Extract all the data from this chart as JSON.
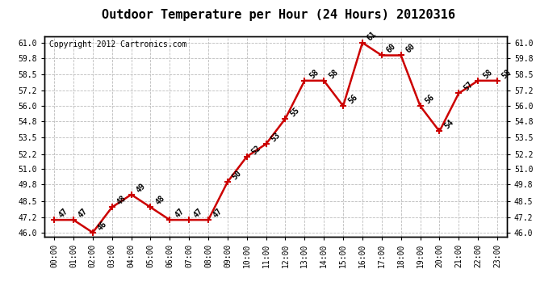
{
  "title": "Outdoor Temperature per Hour (24 Hours) 20120316",
  "copyright": "Copyright 2012 Cartronics.com",
  "hours": [
    "00:00",
    "01:00",
    "02:00",
    "03:00",
    "04:00",
    "05:00",
    "06:00",
    "07:00",
    "08:00",
    "09:00",
    "10:00",
    "11:00",
    "12:00",
    "13:00",
    "14:00",
    "15:00",
    "16:00",
    "17:00",
    "18:00",
    "19:00",
    "20:00",
    "21:00",
    "22:00",
    "23:00"
  ],
  "temperatures": [
    47,
    47,
    46,
    48,
    49,
    48,
    47,
    47,
    47,
    50,
    52,
    53,
    55,
    58,
    58,
    56,
    61,
    60,
    60,
    56,
    54,
    57,
    58,
    58
  ],
  "ylim": [
    45.7,
    61.5
  ],
  "yticks": [
    46.0,
    47.2,
    48.5,
    49.8,
    51.0,
    52.2,
    53.5,
    54.8,
    56.0,
    57.2,
    58.5,
    59.8,
    61.0
  ],
  "line_color": "#cc0000",
  "line_width": 1.8,
  "bg_color": "#ffffff",
  "grid_color": "#bbbbbb",
  "title_fontsize": 11,
  "copyright_fontsize": 7,
  "label_fontsize": 7,
  "tick_fontsize": 7
}
